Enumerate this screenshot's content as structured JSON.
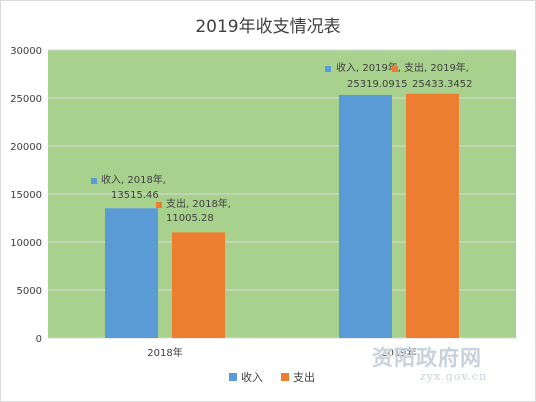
{
  "chart_data": {
    "type": "bar",
    "title": "2019年收支情况表",
    "categories": [
      "2018年",
      "2019年"
    ],
    "series": [
      {
        "name": "收入",
        "color": "#5b9bd5",
        "values": [
          13515.46,
          25319.0915
        ],
        "data_labels": [
          {
            "line1": "收入, 2018年,",
            "line2": "13515.46"
          },
          {
            "line1": "收入, 2019年,",
            "line2": "25319.0915"
          }
        ]
      },
      {
        "name": "支出",
        "color": "#ed7d31",
        "values": [
          11005.28,
          25433.3452
        ],
        "data_labels": [
          {
            "line1": "支出, 2018年,",
            "line2": "11005.28"
          },
          {
            "line1": "支出, 2019年,",
            "line2": "25433.3452"
          }
        ]
      }
    ],
    "yticks": [
      "0",
      "5000",
      "10000",
      "15000",
      "20000",
      "25000",
      "30000"
    ],
    "ylim": [
      0,
      30000
    ],
    "xlabel": "",
    "ylabel": "",
    "grid": true,
    "legend_position": "bottom",
    "plot_background": "#a9d18e"
  },
  "watermark": {
    "cn": "资阳政府网",
    "url": "zyx.gov.cn"
  }
}
